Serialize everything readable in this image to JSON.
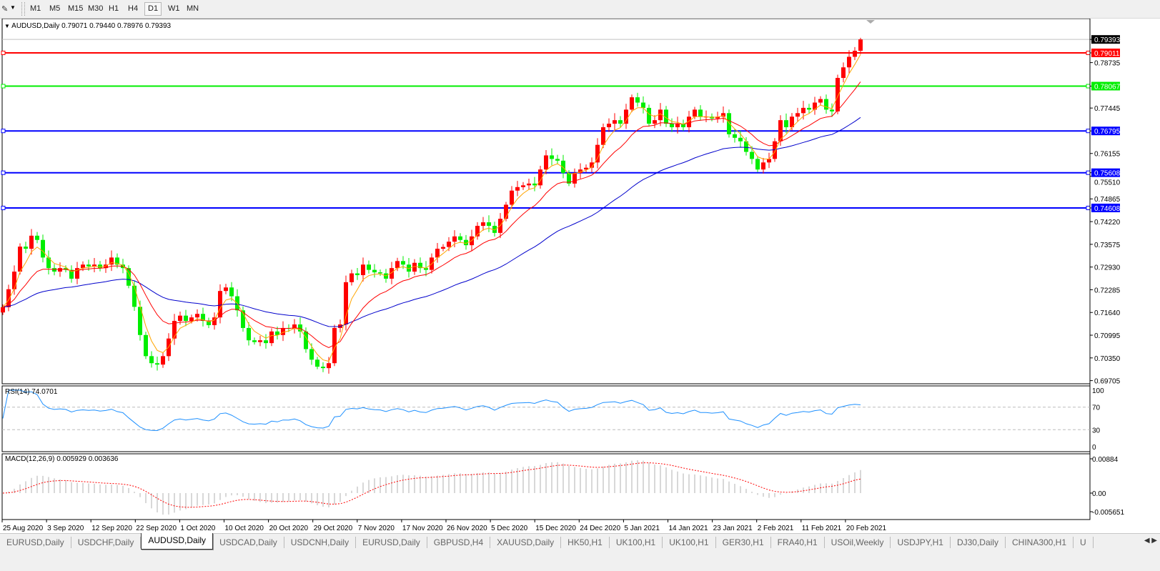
{
  "toolbar": {
    "tool_icon": "line-tool-icon",
    "timeframes": [
      {
        "label": "M1"
      },
      {
        "label": "M5"
      },
      {
        "label": "M15"
      },
      {
        "label": "M30"
      },
      {
        "label": "H1"
      },
      {
        "label": "H4"
      },
      {
        "label": "D1",
        "active": true
      },
      {
        "label": "W1"
      },
      {
        "label": "MN"
      }
    ]
  },
  "main": {
    "legend": "AUDUSD,Daily  0.79071 0.79440 0.78976 0.79393",
    "rsi_legend": "RSI(14) 74.0701",
    "macd_legend": "MACD(12,26,9) 0.005929 0.003636"
  },
  "colors": {
    "bull_candle": "#ff0000",
    "bear_candle": "#00ee00",
    "ma_fast": "#ffa500",
    "ma_mid": "#ff0000",
    "ma_slow": "#0000cc",
    "rsi_line": "#1e90ff",
    "macd_hist": "#b0b0b0",
    "macd_signal": "#ff0000"
  },
  "chart_data": {
    "type": "candlestick",
    "symbol": "AUDUSD",
    "timeframe": "Daily",
    "last_bar": {
      "open": 0.79071,
      "high": 0.7944,
      "low": 0.78976,
      "close": 0.79393
    },
    "close": [
      0.7179,
      0.723,
      0.728,
      0.7351,
      0.7345,
      0.7382,
      0.737,
      0.732,
      0.729,
      0.728,
      0.729,
      0.7285,
      0.726,
      0.729,
      0.73,
      0.7295,
      0.73,
      0.729,
      0.73,
      0.732,
      0.73,
      0.729,
      0.724,
      0.718,
      0.71,
      0.704,
      0.702,
      0.7016,
      0.704,
      0.709,
      0.714,
      0.7155,
      0.714,
      0.715,
      0.716,
      0.714,
      0.7128,
      0.715,
      0.7225,
      0.7235,
      0.721,
      0.717,
      0.712,
      0.7085,
      0.708,
      0.7085,
      0.7077,
      0.711,
      0.71,
      0.712,
      0.7118,
      0.713,
      0.711,
      0.706,
      0.703,
      0.701,
      0.7006,
      0.702,
      0.712,
      0.713,
      0.725,
      0.7275,
      0.727,
      0.73,
      0.7285,
      0.7278,
      0.7275,
      0.726,
      0.729,
      0.731,
      0.73,
      0.728,
      0.7305,
      0.729,
      0.7285,
      0.732,
      0.7345,
      0.735,
      0.7365,
      0.738,
      0.737,
      0.7355,
      0.738,
      0.741,
      0.742,
      0.741,
      0.739,
      0.743,
      0.747,
      0.751,
      0.752,
      0.7525,
      0.753,
      0.7525,
      0.757,
      0.761,
      0.76,
      0.7595,
      0.756,
      0.753,
      0.756,
      0.757,
      0.7575,
      0.759,
      0.764,
      0.769,
      0.77,
      0.771,
      0.77,
      0.774,
      0.7775,
      0.776,
      0.7745,
      0.77,
      0.771,
      0.774,
      0.77,
      0.769,
      0.77,
      0.769,
      0.772,
      0.774,
      0.772,
      0.772,
      0.7715,
      0.772,
      0.773,
      0.767,
      0.766,
      0.765,
      0.762,
      0.76,
      0.757,
      0.759,
      0.76,
      0.765,
      0.771,
      0.769,
      0.772,
      0.773,
      0.7745,
      0.774,
      0.776,
      0.777,
      0.774,
      0.7735,
      0.783,
      0.786,
      0.789,
      0.79071,
      0.79393
    ],
    "price_range": [
      0.69616,
      0.8
    ],
    "price_ticks": [
      "0.78735",
      "0.77445",
      "0.76155",
      "0.75510",
      "0.74865",
      "0.74220",
      "0.73575",
      "0.72930",
      "0.72285",
      "0.71640",
      "0.70995",
      "0.70350",
      "0.69705"
    ],
    "current_price": {
      "value": "0.79393",
      "color": "#000000"
    },
    "horizontal_lines": [
      {
        "value": "0.79011",
        "color": "#ff0000"
      },
      {
        "value": "0.78067",
        "color": "#00ee00"
      },
      {
        "value": "0.76795",
        "color": "#0000ff"
      },
      {
        "value": "0.75608",
        "color": "#0000ff"
      },
      {
        "value": "0.74608",
        "color": "#0000ff"
      }
    ],
    "date_labels": [
      "25 Aug 2020",
      "3 Sep 2020",
      "12 Sep 2020",
      "22 Sep 2020",
      "1 Oct 2020",
      "10 Oct 2020",
      "20 Oct 2020",
      "29 Oct 2020",
      "7 Nov 2020",
      "17 Nov 2020",
      "26 Nov 2020",
      "5 Dec 2020",
      "15 Dec 2020",
      "24 Dec 2020",
      "5 Jan 2021",
      "14 Jan 2021",
      "23 Jan 2021",
      "2 Feb 2021",
      "11 Feb 2021",
      "20 Feb 2021"
    ],
    "rsi": {
      "period": 14,
      "value": 74.0701,
      "range": [
        0,
        100
      ],
      "levels": [
        30,
        70
      ],
      "ticks": [
        "100",
        "70",
        "30",
        "0"
      ]
    },
    "macd": {
      "fast": 12,
      "slow": 26,
      "signal": 9,
      "main": 0.005929,
      "signal_value": 0.003636,
      "range": [
        -0.005651,
        0.00884
      ],
      "ticks": [
        "0.00884",
        "0.00",
        "-0.005651"
      ]
    }
  },
  "tabs": [
    {
      "label": "EURUSD,Daily"
    },
    {
      "label": "USDCHF,Daily"
    },
    {
      "label": "AUDUSD,Daily",
      "active": true
    },
    {
      "label": "USDCAD,Daily"
    },
    {
      "label": "USDCNH,Daily"
    },
    {
      "label": "EURUSD,Daily"
    },
    {
      "label": "GBPUSD,H4"
    },
    {
      "label": "XAUUSD,Daily"
    },
    {
      "label": "HK50,H1"
    },
    {
      "label": "UK100,H1"
    },
    {
      "label": "UK100,H1"
    },
    {
      "label": "GER30,H1"
    },
    {
      "label": "FRA40,H1"
    },
    {
      "label": "USOil,Weekly"
    },
    {
      "label": "USDJPY,H1"
    },
    {
      "label": "DJ30,Daily"
    },
    {
      "label": "CHINA300,H1"
    },
    {
      "label": "U"
    }
  ]
}
